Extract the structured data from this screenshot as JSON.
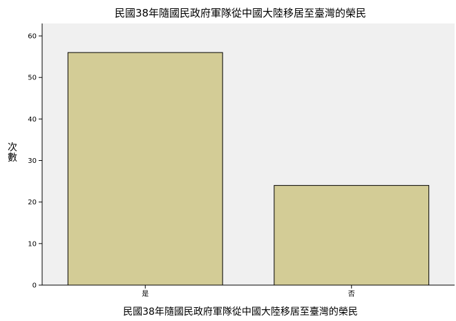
{
  "chart_data": {
    "type": "bar",
    "title": "民國38年隨國民政府軍隊從中國大陸移居至臺灣的榮民",
    "xlabel": "民國38年隨國民政府軍隊從中國大陸移居至臺灣的榮民",
    "ylabel": "次數",
    "categories": [
      "是",
      "否"
    ],
    "values": [
      56,
      24
    ],
    "ylim": [
      0,
      63
    ],
    "yticks": [
      0,
      10,
      20,
      30,
      40,
      50,
      60
    ],
    "grid": false,
    "legend": "none"
  },
  "colors": {
    "bar_fill": "#d3cc96",
    "bar_stroke": "#000000",
    "plot_background": "#f0f0f0",
    "page_background": "#ffffff"
  }
}
